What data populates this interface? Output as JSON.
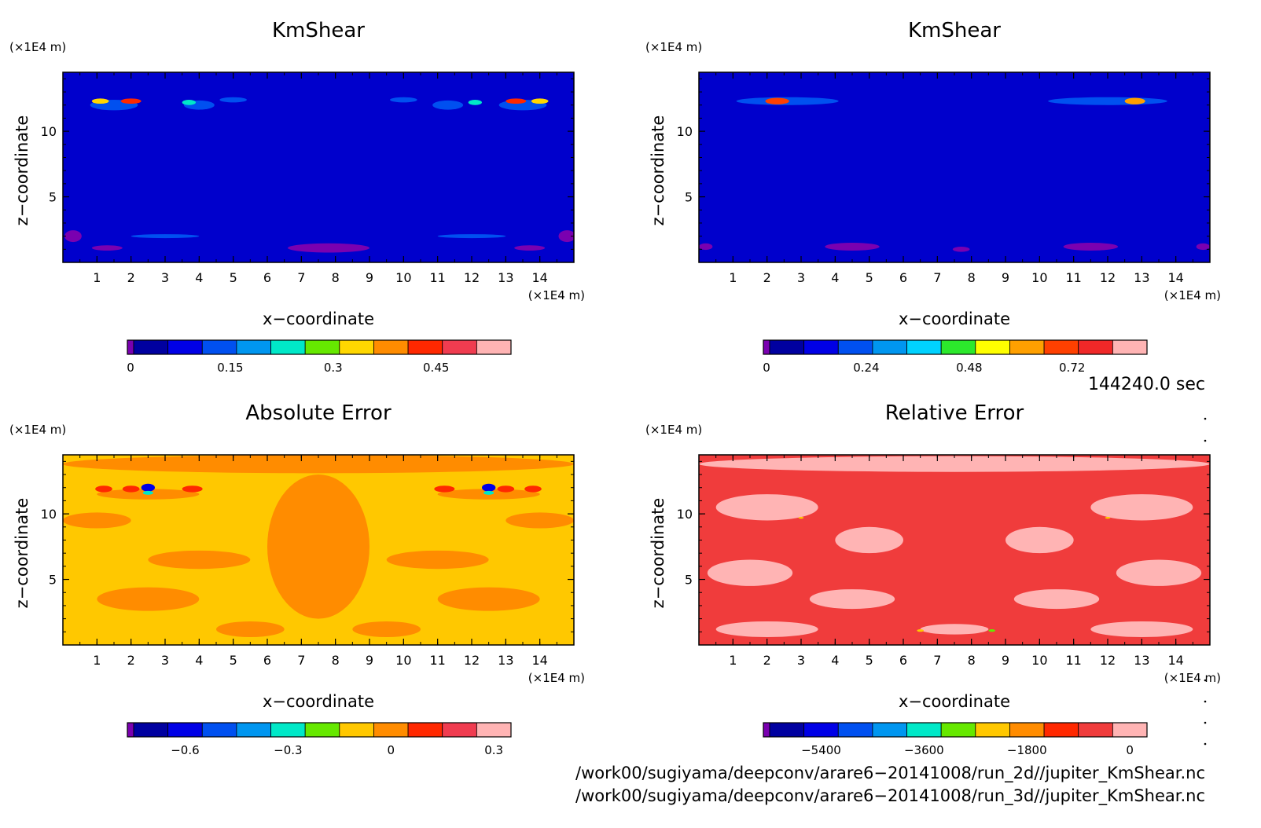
{
  "chart_data": [
    {
      "type": "heatmap",
      "title": "KmShear",
      "xlabel": "x−coordinate",
      "ylabel": "z−coordinate",
      "x_unit": "(×1E4 m)",
      "y_unit": "(×1E4 m)",
      "xlim": [
        0,
        15
      ],
      "ylim": [
        0,
        14.5
      ],
      "x_ticks": [
        "1",
        "2",
        "3",
        "4",
        "5",
        "6",
        "7",
        "8",
        "9",
        "10",
        "11",
        "12",
        "13",
        "14"
      ],
      "y_ticks": [
        "5",
        "10"
      ],
      "background_color": "#0000cc",
      "colorbar": {
        "colors": [
          "#7a00b0",
          "#0000a0",
          "#0000e6",
          "#0050f0",
          "#0096f0",
          "#00e8c8",
          "#66e800",
          "#ffd700",
          "#ff8c00",
          "#ff2800",
          "#f03c50",
          "#ffb4b4"
        ],
        "labels": [
          "0",
          "0.15",
          "0.3",
          "0.45"
        ]
      },
      "features": [
        {
          "x": 0.3,
          "z": 2.0,
          "w": 0.5,
          "h": 0.9,
          "color": "#7a00b0"
        },
        {
          "x": 1.3,
          "z": 1.1,
          "w": 0.9,
          "h": 0.4,
          "color": "#7a00b0"
        },
        {
          "x": 7.8,
          "z": 1.1,
          "w": 2.4,
          "h": 0.7,
          "color": "#7a00b0"
        },
        {
          "x": 13.7,
          "z": 1.1,
          "w": 0.9,
          "h": 0.4,
          "color": "#7a00b0"
        },
        {
          "x": 14.8,
          "z": 2.0,
          "w": 0.5,
          "h": 0.9,
          "color": "#7a00b0"
        },
        {
          "x": 3.0,
          "z": 2.0,
          "w": 2.0,
          "h": 0.3,
          "color": "#0050f0"
        },
        {
          "x": 12.0,
          "z": 2.0,
          "w": 2.0,
          "h": 0.3,
          "color": "#0050f0"
        },
        {
          "x": 1.5,
          "z": 12.0,
          "w": 1.4,
          "h": 0.8,
          "color": "#0050f0"
        },
        {
          "x": 4.0,
          "z": 12.0,
          "w": 0.9,
          "h": 0.7,
          "color": "#0050f0"
        },
        {
          "x": 5.0,
          "z": 12.4,
          "w": 0.8,
          "h": 0.4,
          "color": "#0050f0"
        },
        {
          "x": 10.0,
          "z": 12.4,
          "w": 0.8,
          "h": 0.4,
          "color": "#0050f0"
        },
        {
          "x": 11.3,
          "z": 12.0,
          "w": 0.9,
          "h": 0.7,
          "color": "#0050f0"
        },
        {
          "x": 13.5,
          "z": 12.0,
          "w": 1.4,
          "h": 0.8,
          "color": "#0050f0"
        },
        {
          "x": 1.1,
          "z": 12.3,
          "w": 0.5,
          "h": 0.4,
          "color": "#ffd700"
        },
        {
          "x": 2.0,
          "z": 12.3,
          "w": 0.6,
          "h": 0.4,
          "color": "#ff2800"
        },
        {
          "x": 3.7,
          "z": 12.2,
          "w": 0.4,
          "h": 0.4,
          "color": "#00e8c8"
        },
        {
          "x": 12.1,
          "z": 12.2,
          "w": 0.4,
          "h": 0.4,
          "color": "#00e8c8"
        },
        {
          "x": 13.3,
          "z": 12.3,
          "w": 0.6,
          "h": 0.4,
          "color": "#ff2800"
        },
        {
          "x": 14.0,
          "z": 12.3,
          "w": 0.5,
          "h": 0.4,
          "color": "#ffd700"
        }
      ]
    },
    {
      "type": "heatmap",
      "title": "KmShear",
      "xlabel": "x−coordinate",
      "ylabel": "z−coordinate",
      "x_unit": "(×1E4 m)",
      "y_unit": "(×1E4 m)",
      "xlim": [
        0,
        15
      ],
      "ylim": [
        0,
        14.5
      ],
      "x_ticks": [
        "1",
        "2",
        "3",
        "4",
        "5",
        "6",
        "7",
        "8",
        "9",
        "10",
        "11",
        "12",
        "13",
        "14"
      ],
      "y_ticks": [
        "5",
        "10"
      ],
      "background_color": "#0000cc",
      "colorbar": {
        "colors": [
          "#7a00b0",
          "#0000a0",
          "#0000e6",
          "#0050f0",
          "#0096f0",
          "#00d2ff",
          "#2ce82c",
          "#ffff00",
          "#ffa000",
          "#ff4000",
          "#f02828",
          "#ffb4b4"
        ],
        "labels": [
          "0",
          "0.24",
          "0.48",
          "0.72"
        ]
      },
      "features": [
        {
          "x": 0.2,
          "z": 1.2,
          "w": 0.4,
          "h": 0.5,
          "color": "#7a00b0"
        },
        {
          "x": 4.5,
          "z": 1.2,
          "w": 1.6,
          "h": 0.6,
          "color": "#7a00b0"
        },
        {
          "x": 7.7,
          "z": 1.0,
          "w": 0.5,
          "h": 0.4,
          "color": "#7a00b0"
        },
        {
          "x": 11.5,
          "z": 1.2,
          "w": 1.6,
          "h": 0.6,
          "color": "#7a00b0"
        },
        {
          "x": 14.8,
          "z": 1.2,
          "w": 0.4,
          "h": 0.5,
          "color": "#7a00b0"
        },
        {
          "x": 2.6,
          "z": 12.3,
          "w": 3.0,
          "h": 0.6,
          "color": "#0050f0"
        },
        {
          "x": 12.0,
          "z": 12.3,
          "w": 3.5,
          "h": 0.6,
          "color": "#0050f0"
        },
        {
          "x": 2.3,
          "z": 12.3,
          "w": 0.7,
          "h": 0.5,
          "color": "#ff4000"
        },
        {
          "x": 12.8,
          "z": 12.3,
          "w": 0.6,
          "h": 0.5,
          "color": "#ffa000"
        }
      ]
    },
    {
      "type": "heatmap",
      "title": "Absolute Error",
      "xlabel": "x−coordinate",
      "ylabel": "z−coordinate",
      "x_unit": "(×1E4 m)",
      "y_unit": "(×1E4 m)",
      "xlim": [
        0,
        15
      ],
      "ylim": [
        0,
        14.5
      ],
      "x_ticks": [
        "1",
        "2",
        "3",
        "4",
        "5",
        "6",
        "7",
        "8",
        "9",
        "10",
        "11",
        "12",
        "13",
        "14"
      ],
      "y_ticks": [
        "5",
        "10"
      ],
      "background_color": "#ffc800",
      "colorbar": {
        "colors": [
          "#7a00b0",
          "#0000a0",
          "#0000e6",
          "#0050f0",
          "#0096f0",
          "#00e8c8",
          "#66e800",
          "#ffc800",
          "#ff8c00",
          "#ff2800",
          "#f03c50",
          "#ffb4b4"
        ],
        "labels": [
          "−0.6",
          "−0.3",
          "0",
          "0.3"
        ]
      },
      "features": [
        {
          "x": 7.5,
          "z": 13.8,
          "w": 15.0,
          "h": 1.4,
          "color": "#ff8c00"
        },
        {
          "x": 7.5,
          "z": 7.5,
          "w": 3.0,
          "h": 11.0,
          "color": "#ff8c00"
        },
        {
          "x": 1.0,
          "z": 9.5,
          "w": 2.0,
          "h": 1.2,
          "color": "#ff8c00"
        },
        {
          "x": 14.0,
          "z": 9.5,
          "w": 2.0,
          "h": 1.2,
          "color": "#ff8c00"
        },
        {
          "x": 4.0,
          "z": 6.5,
          "w": 3.0,
          "h": 1.4,
          "color": "#ff8c00"
        },
        {
          "x": 11.0,
          "z": 6.5,
          "w": 3.0,
          "h": 1.4,
          "color": "#ff8c00"
        },
        {
          "x": 2.5,
          "z": 3.5,
          "w": 3.0,
          "h": 1.8,
          "color": "#ff8c00"
        },
        {
          "x": 12.5,
          "z": 3.5,
          "w": 3.0,
          "h": 1.8,
          "color": "#ff8c00"
        },
        {
          "x": 5.5,
          "z": 1.2,
          "w": 2.0,
          "h": 1.2,
          "color": "#ff8c00"
        },
        {
          "x": 9.5,
          "z": 1.2,
          "w": 2.0,
          "h": 1.2,
          "color": "#ff8c00"
        },
        {
          "x": 2.5,
          "z": 11.5,
          "w": 3.0,
          "h": 0.8,
          "color": "#ff8c00"
        },
        {
          "x": 12.5,
          "z": 11.5,
          "w": 3.0,
          "h": 0.8,
          "color": "#ff8c00"
        },
        {
          "x": 1.2,
          "z": 11.9,
          "w": 0.5,
          "h": 0.5,
          "color": "#ff2800"
        },
        {
          "x": 2.0,
          "z": 11.9,
          "w": 0.5,
          "h": 0.5,
          "color": "#ff2800"
        },
        {
          "x": 3.8,
          "z": 11.9,
          "w": 0.6,
          "h": 0.5,
          "color": "#ff2800"
        },
        {
          "x": 11.2,
          "z": 11.9,
          "w": 0.6,
          "h": 0.5,
          "color": "#ff2800"
        },
        {
          "x": 13.0,
          "z": 11.9,
          "w": 0.5,
          "h": 0.5,
          "color": "#ff2800"
        },
        {
          "x": 13.8,
          "z": 11.9,
          "w": 0.5,
          "h": 0.5,
          "color": "#ff2800"
        },
        {
          "x": 2.5,
          "z": 12.0,
          "w": 0.4,
          "h": 0.6,
          "color": "#0000e6"
        },
        {
          "x": 2.5,
          "z": 11.6,
          "w": 0.3,
          "h": 0.3,
          "color": "#00e8c8"
        },
        {
          "x": 12.5,
          "z": 12.0,
          "w": 0.4,
          "h": 0.6,
          "color": "#0000e6"
        },
        {
          "x": 12.5,
          "z": 11.6,
          "w": 0.3,
          "h": 0.3,
          "color": "#00e8c8"
        }
      ]
    },
    {
      "type": "heatmap",
      "title": "Relative Error",
      "xlabel": "x−coordinate",
      "ylabel": "z−coordinate",
      "x_unit": "(×1E4 m)",
      "y_unit": "(×1E4 m)",
      "xlim": [
        0,
        15
      ],
      "ylim": [
        0,
        14.5
      ],
      "x_ticks": [
        "1",
        "2",
        "3",
        "4",
        "5",
        "6",
        "7",
        "8",
        "9",
        "10",
        "11",
        "12",
        "13",
        "14"
      ],
      "y_ticks": [
        "5",
        "10"
      ],
      "background_color": "#f03c3c",
      "colorbar": {
        "colors": [
          "#7a00b0",
          "#0000a0",
          "#0000e6",
          "#0050f0",
          "#0096f0",
          "#00e8c8",
          "#66e800",
          "#ffc800",
          "#ff8c00",
          "#ff2800",
          "#f03c3c",
          "#ffb4b4"
        ],
        "labels": [
          "−5400",
          "−3600",
          "−1800",
          "0"
        ]
      },
      "features": [
        {
          "x": 7.5,
          "z": 13.8,
          "w": 15.0,
          "h": 1.2,
          "color": "#ffb4b4"
        },
        {
          "x": 2.0,
          "z": 10.5,
          "w": 3.0,
          "h": 2.0,
          "color": "#ffb4b4"
        },
        {
          "x": 13.0,
          "z": 10.5,
          "w": 3.0,
          "h": 2.0,
          "color": "#ffb4b4"
        },
        {
          "x": 5.0,
          "z": 8.0,
          "w": 2.0,
          "h": 2.0,
          "color": "#ffb4b4"
        },
        {
          "x": 10.0,
          "z": 8.0,
          "w": 2.0,
          "h": 2.0,
          "color": "#ffb4b4"
        },
        {
          "x": 1.5,
          "z": 5.5,
          "w": 2.5,
          "h": 2.0,
          "color": "#ffb4b4"
        },
        {
          "x": 13.5,
          "z": 5.5,
          "w": 2.5,
          "h": 2.0,
          "color": "#ffb4b4"
        },
        {
          "x": 4.5,
          "z": 3.5,
          "w": 2.5,
          "h": 1.5,
          "color": "#ffb4b4"
        },
        {
          "x": 10.5,
          "z": 3.5,
          "w": 2.5,
          "h": 1.5,
          "color": "#ffb4b4"
        },
        {
          "x": 2.0,
          "z": 1.2,
          "w": 3.0,
          "h": 1.2,
          "color": "#ffb4b4"
        },
        {
          "x": 13.0,
          "z": 1.2,
          "w": 3.0,
          "h": 1.2,
          "color": "#ffb4b4"
        },
        {
          "x": 7.5,
          "z": 1.2,
          "w": 2.0,
          "h": 0.8,
          "color": "#ffb4b4"
        },
        {
          "x": 6.5,
          "z": 1.1,
          "w": 0.2,
          "h": 0.2,
          "color": "#ffc800"
        },
        {
          "x": 8.6,
          "z": 1.1,
          "w": 0.2,
          "h": 0.2,
          "color": "#66e800"
        },
        {
          "x": 3.0,
          "z": 9.7,
          "w": 0.15,
          "h": 0.15,
          "color": "#ffc800"
        },
        {
          "x": 12.0,
          "z": 9.7,
          "w": 0.15,
          "h": 0.15,
          "color": "#ffc800"
        }
      ]
    }
  ],
  "time_label": "144240.0 sec",
  "footer": {
    "line1": "/work00/sugiyama/deepconv/arare6−20141008/run_2d//jupiter_KmShear.nc",
    "line2": "/work00/sugiyama/deepconv/arare6−20141008/run_3d//jupiter_KmShear.nc"
  }
}
